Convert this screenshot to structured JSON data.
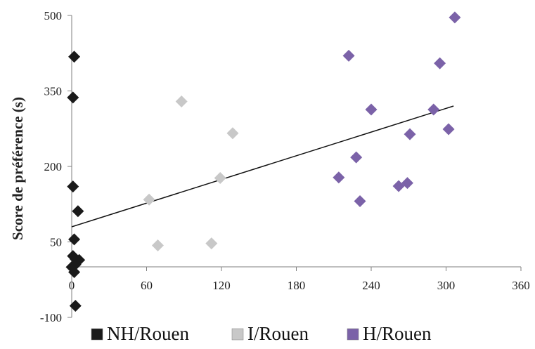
{
  "chart_data": {
    "type": "scatter",
    "title": "",
    "xlabel": "",
    "ylabel": "Score de préférence (s)",
    "xlim": [
      0,
      360
    ],
    "ylim": [
      -100,
      500
    ],
    "x_ticks": [
      0,
      60,
      120,
      180,
      240,
      300,
      360
    ],
    "y_ticks": [
      -100,
      50,
      200,
      350,
      500
    ],
    "legend_position": "bottom",
    "series": [
      {
        "name": "NH/Rouen",
        "color": "#1a1a1a",
        "points": [
          {
            "x": 2,
            "y": 418
          },
          {
            "x": 1,
            "y": 337
          },
          {
            "x": 1,
            "y": 160
          },
          {
            "x": 5,
            "y": 111
          },
          {
            "x": 2,
            "y": 55
          },
          {
            "x": 1,
            "y": 22
          },
          {
            "x": 3,
            "y": 16
          },
          {
            "x": 6,
            "y": 14
          },
          {
            "x": 3,
            "y": 5
          },
          {
            "x": 0,
            "y": 0
          },
          {
            "x": 2,
            "y": -10
          },
          {
            "x": 3,
            "y": -77
          }
        ]
      },
      {
        "name": "I/Rouen",
        "color": "#c8c8c8",
        "points": [
          {
            "x": 62,
            "y": 134
          },
          {
            "x": 69,
            "y": 43
          },
          {
            "x": 88,
            "y": 329
          },
          {
            "x": 112,
            "y": 47
          },
          {
            "x": 119,
            "y": 177
          },
          {
            "x": 129,
            "y": 266
          }
        ]
      },
      {
        "name": "H/Rouen",
        "color": "#7b62a8",
        "points": [
          {
            "x": 214,
            "y": 178
          },
          {
            "x": 222,
            "y": 420
          },
          {
            "x": 228,
            "y": 218
          },
          {
            "x": 231,
            "y": 131
          },
          {
            "x": 240,
            "y": 313
          },
          {
            "x": 262,
            "y": 161
          },
          {
            "x": 269,
            "y": 167
          },
          {
            "x": 271,
            "y": 264
          },
          {
            "x": 290,
            "y": 313
          },
          {
            "x": 295,
            "y": 405
          },
          {
            "x": 302,
            "y": 274
          },
          {
            "x": 307,
            "y": 496
          }
        ]
      }
    ],
    "trendline": {
      "x": [
        0,
        306
      ],
      "y": [
        80,
        320
      ],
      "color": "#111111"
    }
  }
}
